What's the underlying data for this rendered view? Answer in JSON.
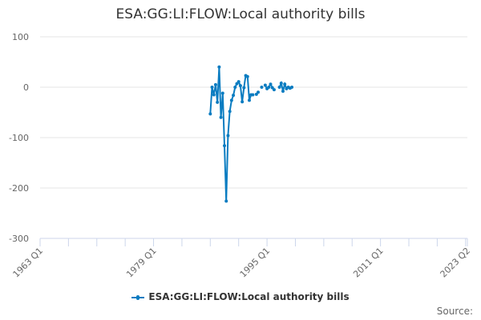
{
  "chart_data": {
    "type": "line",
    "title": "ESA:GG:LI:FLOW:Local authority bills",
    "xlabel": "",
    "ylabel": "",
    "x_range": [
      "1963 Q1",
      "2023 Q2"
    ],
    "x_tick_labels": [
      "1963 Q1",
      "1979 Q1",
      "1995 Q1",
      "2011 Q1",
      "2023 Q2"
    ],
    "ylim": [
      -300,
      100
    ],
    "y_ticks": [
      100,
      0,
      -100,
      -200,
      -300
    ],
    "grid": "horizontal",
    "legend": "bottom",
    "color": "#0a7cc1",
    "series": [
      {
        "name": "ESA:GG:LI:FLOW:Local authority bills",
        "x": [
          "1987 Q1",
          "1987 Q2",
          "1987 Q3",
          "1987 Q4",
          "1988 Q1",
          "1988 Q2",
          "1988 Q3",
          "1988 Q4",
          "1989 Q1",
          "1989 Q2",
          "1989 Q3",
          "1989 Q4",
          "1990 Q1",
          "1990 Q2",
          "1990 Q3",
          "1990 Q4",
          "1991 Q1",
          "1991 Q2",
          "1991 Q3",
          "1991 Q4",
          "1992 Q1",
          "1992 Q2",
          "1992 Q3",
          "1992 Q4",
          "1993 Q1",
          "1993 Q2",
          "1993 Q3",
          "1993 Q4",
          "1994 Q1",
          "1994 Q2",
          "1994 Q3",
          "1994 Q4",
          "1995 Q1",
          "1995 Q2",
          "1995 Q3",
          "1995 Q4",
          "1996 Q1",
          "1996 Q2",
          "1996 Q3",
          "1996 Q4",
          "1997 Q1",
          "1997 Q2",
          "1997 Q3",
          "1997 Q4",
          "1998 Q1",
          "1998 Q2",
          "1998 Q3"
        ],
        "values": [
          -53,
          0,
          -15,
          5,
          -30,
          40,
          -60,
          -12,
          -116,
          -226,
          -96,
          -48,
          -26,
          -16,
          0,
          7,
          11,
          3,
          -29,
          -1,
          23,
          21,
          -26,
          -15,
          -15,
          null,
          -14,
          -10,
          null,
          0,
          null,
          4,
          -3,
          0,
          6,
          -1,
          -5,
          null,
          null,
          0,
          8,
          -8,
          6,
          -3,
          0,
          -2,
          0
        ]
      }
    ]
  },
  "source_label": "Source:"
}
